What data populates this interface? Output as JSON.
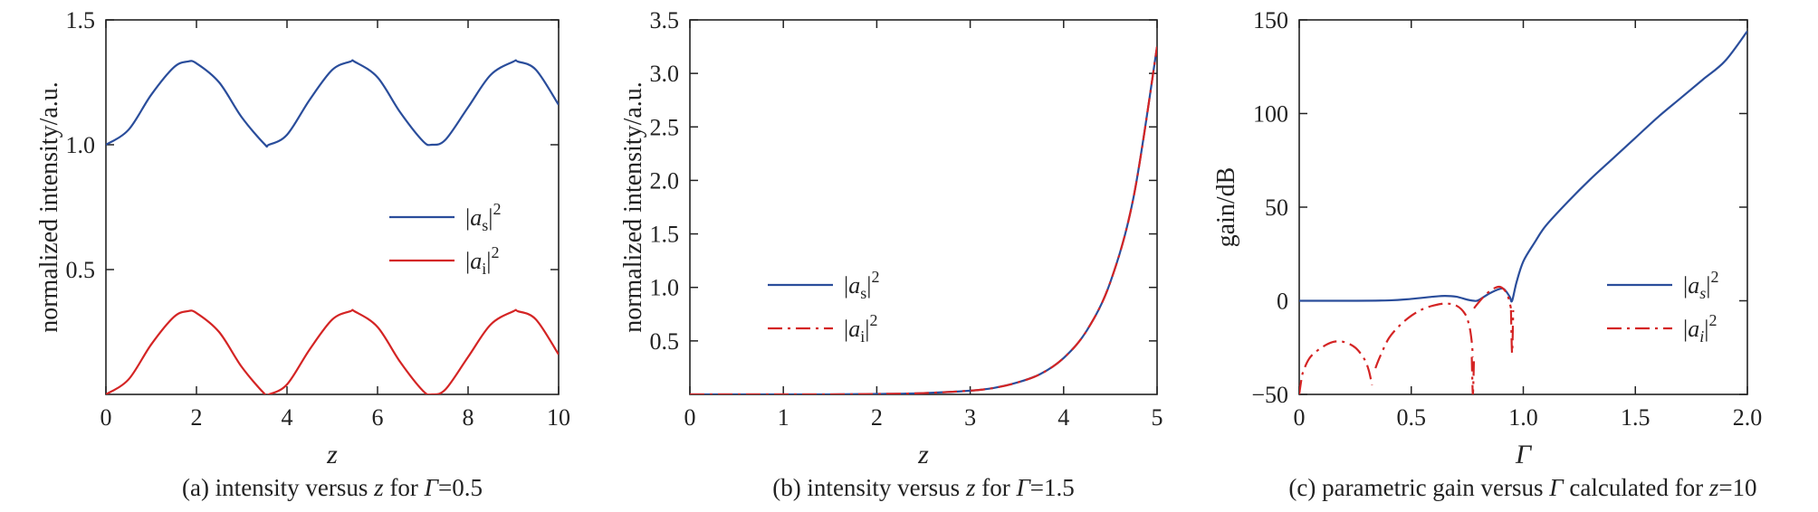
{
  "colors": {
    "blue": "#2a4d9b",
    "red": "#d42424",
    "axis": "#222222"
  },
  "chart_data": [
    {
      "id": "a",
      "type": "line",
      "caption_parts": [
        "(a) intensity versus ",
        "z",
        " for ",
        "Γ",
        "=0.5"
      ],
      "xlabel": "z",
      "ylabel": "normalized intensity/a.u.",
      "xlim": [
        0,
        10
      ],
      "ylim": [
        0,
        1.5
      ],
      "xticks": [
        0,
        2,
        4,
        6,
        8,
        10
      ],
      "xtick_labels": [
        "0",
        "2",
        "4",
        "6",
        "8",
        "10"
      ],
      "yticks": [
        0.5,
        1.0,
        1.5
      ],
      "ytick_labels": [
        "0.5",
        "1.0",
        "1.5"
      ],
      "legend": {
        "position": "center-right",
        "entries": [
          {
            "label": "|as|²",
            "text": "|a",
            "sub": "s",
            "close": "|",
            "sup": "2",
            "color": "blue",
            "dash": "solid"
          },
          {
            "label": "|ai|²",
            "text": "|a",
            "sub": "i",
            "close": "|",
            "sup": "2",
            "color": "red",
            "dash": "solid"
          }
        ]
      },
      "series": [
        {
          "name": "|as|²",
          "color": "blue",
          "dash": "solid",
          "x": [
            0,
            0.5,
            1,
            1.5,
            1.8,
            2,
            2.5,
            3,
            3.5,
            3.6,
            4,
            4.5,
            5,
            5.4,
            5.5,
            6,
            6.5,
            7,
            7.2,
            7.5,
            8,
            8.5,
            9,
            9.1,
            9.5,
            10
          ],
          "y": [
            1.0,
            1.06,
            1.2,
            1.31,
            1.333,
            1.326,
            1.25,
            1.11,
            1.003,
            1.0,
            1.04,
            1.18,
            1.3,
            1.333,
            1.332,
            1.27,
            1.13,
            1.015,
            1.0,
            1.02,
            1.15,
            1.28,
            1.333,
            1.333,
            1.3,
            1.16
          ]
        },
        {
          "name": "|ai|²",
          "color": "red",
          "dash": "solid",
          "x": [
            0,
            0.5,
            1,
            1.5,
            1.8,
            2,
            2.5,
            3,
            3.5,
            3.6,
            4,
            4.5,
            5,
            5.4,
            5.5,
            6,
            6.5,
            7,
            7.2,
            7.5,
            8,
            8.5,
            9,
            9.1,
            9.5,
            10
          ],
          "y": [
            0.0,
            0.06,
            0.2,
            0.31,
            0.333,
            0.326,
            0.25,
            0.11,
            0.003,
            0.0,
            0.04,
            0.18,
            0.3,
            0.333,
            0.332,
            0.27,
            0.13,
            0.015,
            0.0,
            0.02,
            0.15,
            0.28,
            0.333,
            0.333,
            0.3,
            0.16
          ]
        }
      ]
    },
    {
      "id": "b",
      "type": "line",
      "caption_parts": [
        "(b) intensity versus ",
        "z",
        " for ",
        "Γ",
        "=1.5"
      ],
      "xlabel": "z",
      "ylabel": "normalized intensity/a.u.",
      "xlim": [
        0,
        5
      ],
      "ylim": [
        0,
        3.5
      ],
      "xticks": [
        0,
        1,
        2,
        3,
        4,
        5
      ],
      "xtick_labels": [
        "0",
        "1",
        "2",
        "3",
        "4",
        "5"
      ],
      "yticks": [
        0.5,
        1.0,
        1.5,
        2.0,
        2.5,
        3.0,
        3.5
      ],
      "ytick_labels": [
        "0.5",
        "1.0",
        "1.5",
        "2.0",
        "2.5",
        "3.0",
        "3.5"
      ],
      "legend": {
        "position": "lower-left",
        "entries": [
          {
            "label": "|as|²",
            "text": "|a",
            "sub": "s",
            "close": "|",
            "sup": "2",
            "color": "blue",
            "dash": "solid"
          },
          {
            "label": "|ai|²",
            "text": "|a",
            "sub": "i",
            "close": "|",
            "sup": "2",
            "color": "red",
            "dash": "dashdot"
          }
        ]
      },
      "series": [
        {
          "name": "|as|²",
          "color": "blue",
          "dash": "solid",
          "x": [
            0,
            0.5,
            1,
            1.5,
            2,
            2.5,
            3,
            3.25,
            3.5,
            3.75,
            4,
            4.25,
            4.5,
            4.75,
            5
          ],
          "y": [
            0,
            0.0,
            0.0,
            0.0,
            0.004,
            0.012,
            0.035,
            0.06,
            0.11,
            0.19,
            0.34,
            0.6,
            1.05,
            1.85,
            3.25
          ]
        },
        {
          "name": "|ai|²",
          "color": "red",
          "dash": "dashdot",
          "x": [
            0,
            0.5,
            1,
            1.5,
            2,
            2.5,
            3,
            3.25,
            3.5,
            3.75,
            4,
            4.25,
            4.5,
            4.75,
            5
          ],
          "y": [
            0,
            0.0,
            0.0,
            0.0,
            0.004,
            0.012,
            0.035,
            0.06,
            0.11,
            0.19,
            0.34,
            0.6,
            1.05,
            1.85,
            3.25
          ]
        }
      ]
    },
    {
      "id": "c",
      "type": "line",
      "caption_parts": [
        "(c) parametric gain versus ",
        "Γ",
        " calculated for ",
        "z",
        "=10"
      ],
      "xlabel": "Γ",
      "ylabel": "gain/dB",
      "xlim": [
        0,
        2.0
      ],
      "ylim": [
        -50,
        150
      ],
      "xticks": [
        0,
        0.5,
        1.0,
        1.5,
        2.0
      ],
      "xtick_labels": [
        "0",
        "0.5",
        "1.0",
        "1.5",
        "2.0"
      ],
      "yticks": [
        -50,
        0,
        50,
        100,
        150
      ],
      "ytick_labels": [
        "−50",
        "0",
        "50",
        "100",
        "150"
      ],
      "legend": {
        "position": "center-right",
        "entries": [
          {
            "label": "|as|²",
            "text": "|a",
            "sub": "s",
            "close": "|",
            "sup": "2",
            "color": "blue",
            "dash": "solid",
            "italic_sub": true
          },
          {
            "label": "|ai|²",
            "text": "|a",
            "sub": "i",
            "close": "|",
            "sup": "2",
            "color": "red",
            "dash": "dashdot",
            "italic_sub": true
          }
        ]
      },
      "series": [
        {
          "name": "|as|²",
          "color": "blue",
          "dash": "solid",
          "x": [
            0,
            0.2,
            0.4,
            0.5,
            0.6,
            0.65,
            0.7,
            0.75,
            0.78,
            0.8,
            0.85,
            0.9,
            0.92,
            0.94,
            0.95,
            0.97,
            1.0,
            1.05,
            1.1,
            1.2,
            1.3,
            1.4,
            1.5,
            1.6,
            1.7,
            1.8,
            1.9,
            2.0
          ],
          "y": [
            0,
            0,
            0.2,
            1,
            2.2,
            2.6,
            2.2,
            0.6,
            0,
            0.3,
            4,
            6.5,
            5.5,
            2,
            0,
            10,
            21,
            31,
            40,
            53,
            65,
            76,
            87,
            98,
            108,
            118,
            128,
            144
          ]
        },
        {
          "name": "|ai|²",
          "color": "red",
          "dash": "dashdot",
          "segments": [
            {
              "x": [
                0,
                0.01,
                0.02,
                0.05,
                0.1,
                0.15,
                0.2,
                0.25,
                0.29,
                0.31,
                0.325
              ],
              "y": [
                -50,
                -42,
                -37,
                -30,
                -25,
                -22,
                -22,
                -25,
                -31,
                -37,
                -45
              ]
            },
            {
              "x": [
                0.34,
                0.36,
                0.4,
                0.45,
                0.5,
                0.55,
                0.6,
                0.65,
                0.7,
                0.74,
                0.76,
                0.77,
                0.775
              ],
              "y": [
                -36,
                -30,
                -20,
                -13,
                -8,
                -4.5,
                -2.5,
                -1.5,
                -2.5,
                -7,
                -14,
                -22,
                -30
              ]
            },
            {
              "x": [
                0.77,
                0.772,
                0.775,
                0.778,
                0.78
              ],
              "y": [
                -30,
                -40,
                -50,
                -40,
                -30
              ]
            },
            {
              "x": [
                0.78,
                0.8,
                0.83,
                0.86,
                0.89,
                0.91,
                0.93,
                0.945
              ],
              "y": [
                -4,
                -1,
                3,
                6,
                7.5,
                6.5,
                3,
                -4
              ]
            },
            {
              "x": [
                0.945,
                0.95,
                0.955
              ],
              "y": [
                -5,
                -28,
                -5
              ]
            }
          ]
        }
      ]
    }
  ]
}
